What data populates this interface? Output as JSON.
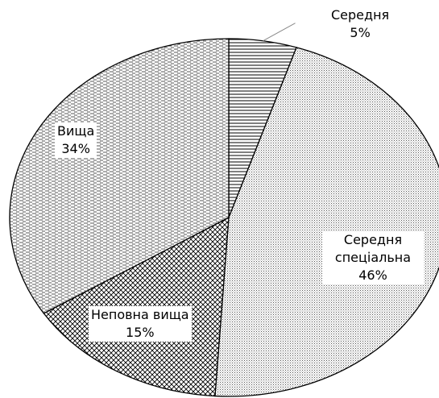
{
  "chart_data": {
    "type": "pie",
    "categories": [
      "Середня",
      "Середня спеціальна",
      "Неповна вища",
      "Вища"
    ],
    "values": [
      5,
      46,
      15,
      34
    ],
    "value_labels": [
      "5%",
      "46%",
      "15%",
      "34%"
    ]
  }
}
